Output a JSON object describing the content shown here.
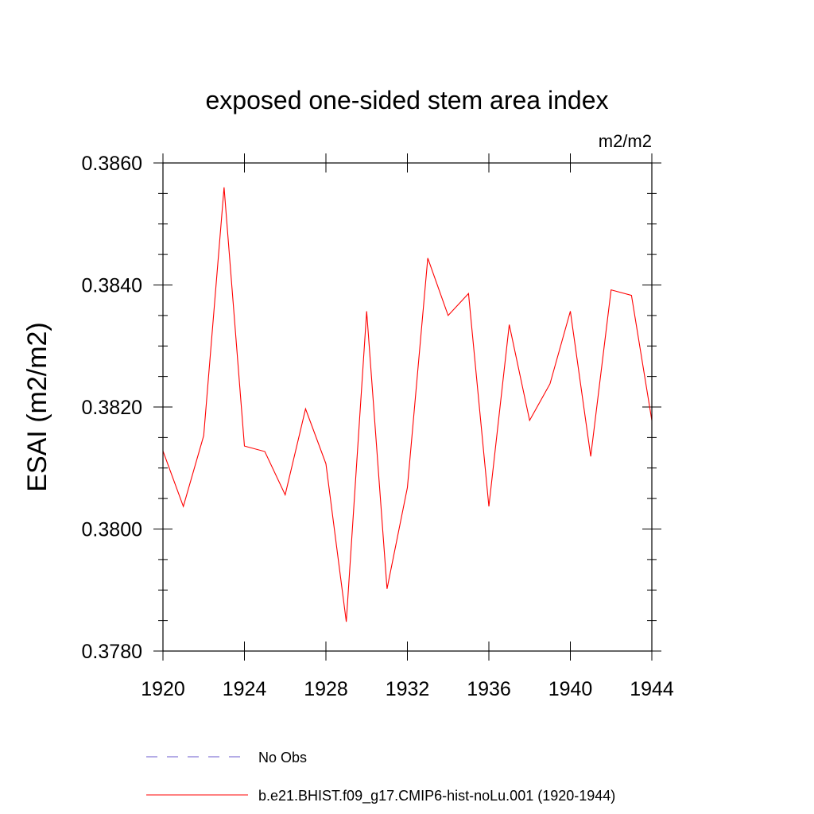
{
  "chart_data": {
    "type": "line",
    "title": "exposed one-sided stem area index",
    "units": "m2/m2",
    "ylabel": "ESAI  (m2/m2)",
    "xlabel": "",
    "xlim": [
      1920,
      1944
    ],
    "ylim": [
      0.378,
      0.386
    ],
    "x_ticks": [
      1920,
      1924,
      1928,
      1932,
      1936,
      1940,
      1944
    ],
    "x_tick_labels": [
      "1920",
      "1924",
      "1928",
      "1932",
      "1936",
      "1940",
      "1944"
    ],
    "y_ticks": [
      0.378,
      0.38,
      0.382,
      0.384,
      0.386
    ],
    "y_tick_labels": [
      "0.3780",
      "0.3800",
      "0.3820",
      "0.3840",
      "0.3860"
    ],
    "grid": false,
    "legend_position": "bottom",
    "series": [
      {
        "name": "b.e21.BHIST.f09_g17.CMIP6-hist-noLu.001 (1920-1944)",
        "color": "#ff0000",
        "style": "solid",
        "x": [
          1920,
          1921,
          1922,
          1923,
          1924,
          1925,
          1926,
          1927,
          1928,
          1929,
          1930,
          1931,
          1932,
          1933,
          1934,
          1935,
          1936,
          1937,
          1938,
          1939,
          1940,
          1941,
          1942,
          1943,
          1944
        ],
        "values": [
          0.38128,
          0.38037,
          0.38153,
          0.3856,
          0.38136,
          0.38127,
          0.38056,
          0.38197,
          0.38107,
          0.37848,
          0.38357,
          0.37902,
          0.38068,
          0.38444,
          0.3835,
          0.38386,
          0.38037,
          0.38335,
          0.38178,
          0.38238,
          0.38357,
          0.38119,
          0.38392,
          0.38383,
          0.38178
        ]
      }
    ],
    "legend": [
      {
        "label": "No Obs",
        "color": "#6a5acd",
        "style": "dashed"
      },
      {
        "label": "b.e21.BHIST.f09_g17.CMIP6-hist-noLu.001 (1920-1944)",
        "color": "#ff0000",
        "style": "solid"
      }
    ]
  }
}
